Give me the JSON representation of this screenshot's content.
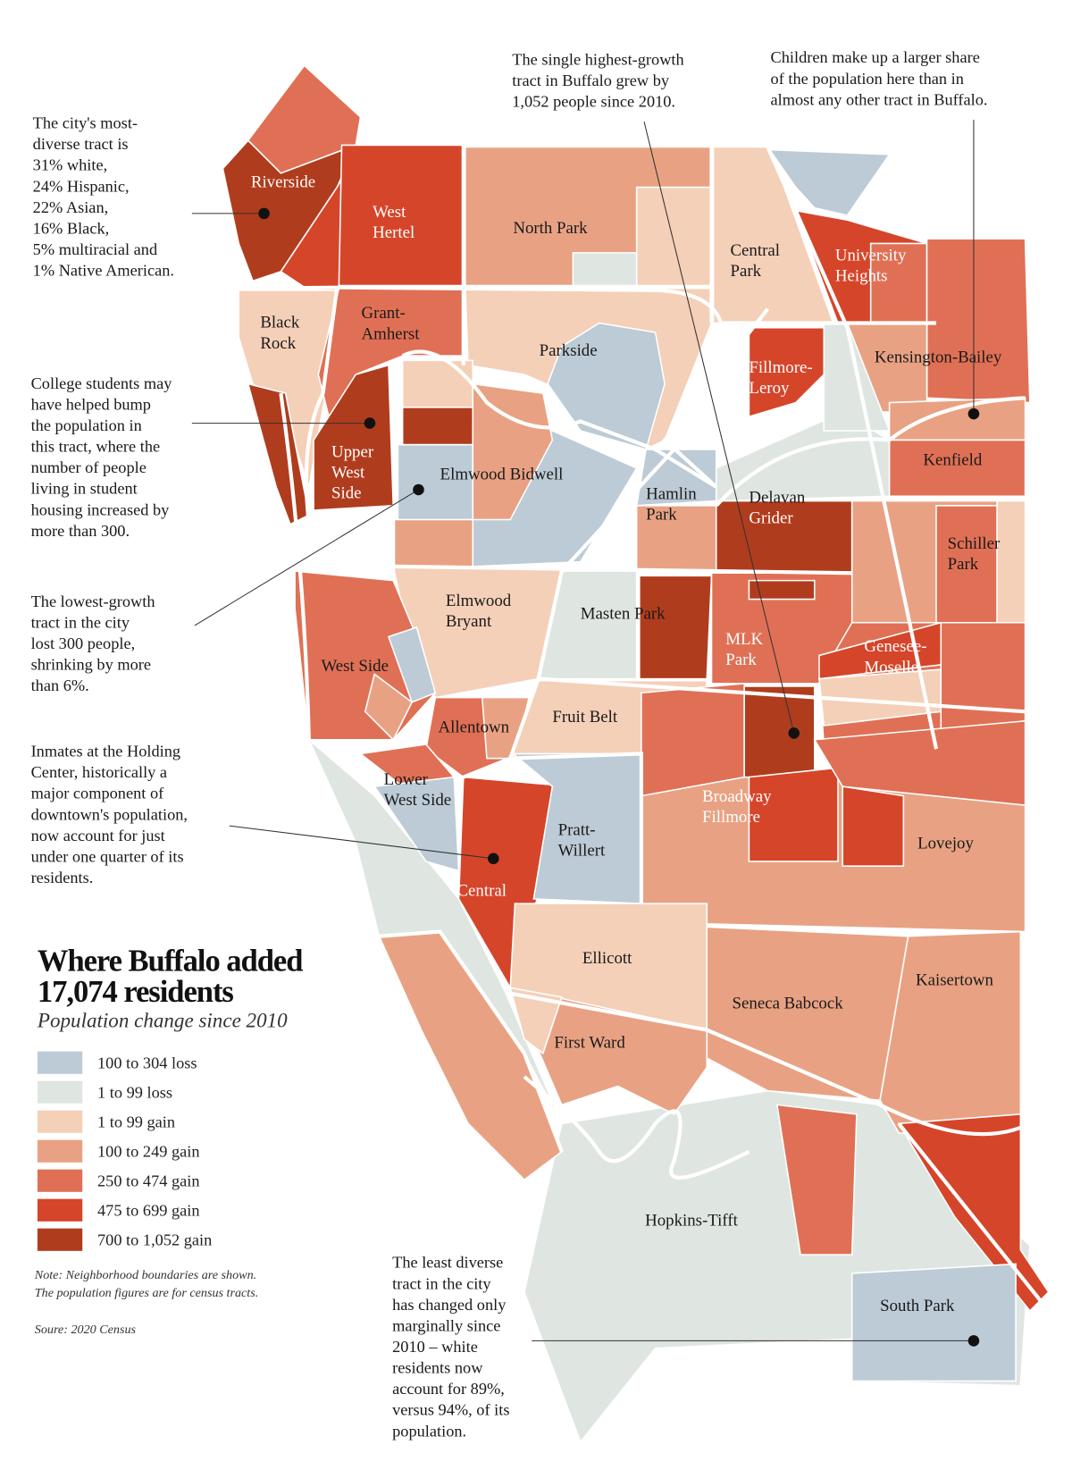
{
  "title_lines": [
    "Where Buffalo added",
    "17,074 residents"
  ],
  "subtitle": "Population change since 2010",
  "legend": [
    {
      "label": "100 to 304 loss",
      "color": "#bccbd6"
    },
    {
      "label": "1 to 99 loss",
      "color": "#dfe6e2"
    },
    {
      "label": "1 to 99 gain",
      "color": "#f4d0b8"
    },
    {
      "label": "100 to 249 gain",
      "color": "#e8a283"
    },
    {
      "label": "250 to 474 gain",
      "color": "#e07055"
    },
    {
      "label": "475 to 699 gain",
      "color": "#d5452a"
    },
    {
      "label": "700 to 1,052 gain",
      "color": "#b03c1e"
    }
  ],
  "notes": [
    "Note: Neighborhood boundaries are shown.",
    "The population figures are for census tracts."
  ],
  "source": "Soure: 2020 Census",
  "annotations": [
    {
      "lines": [
        "The city's most-",
        "diverse tract is",
        "31% white,",
        "24% Hispanic,",
        "22% Asian,",
        "16% Black,",
        "5% multiracial and",
        "1% Native American."
      ]
    },
    {
      "lines": [
        "The single highest-growth",
        "tract in Buffalo grew by",
        "1,052 people since 2010."
      ]
    },
    {
      "lines": [
        "Children make up a larger share",
        "of the population here than in",
        "almost any other tract in Buffalo."
      ]
    },
    {
      "lines": [
        "College students may",
        "have helped bump",
        "the population in",
        "this tract, where the",
        "number of people",
        "living in student",
        "housing increased by",
        "more than 300."
      ]
    },
    {
      "lines": [
        "The lowest-growth",
        "tract in the city",
        "lost 300 people,",
        "shrinking by more",
        "than 6%."
      ]
    },
    {
      "lines": [
        "Inmates at the Holding",
        "Center, historically a",
        "major component of",
        "downtown's population,",
        "now account for just",
        "under one quarter of its",
        "residents."
      ]
    },
    {
      "lines": [
        "The least diverse",
        "tract in the city",
        "has changed only",
        "marginally since",
        "2010 – white",
        "residents now",
        "account for 89%,",
        "versus 94%, of its",
        "population."
      ]
    }
  ],
  "neighborhoods": [
    {
      "lines": [
        "Riverside"
      ]
    },
    {
      "lines": [
        "West",
        "Hertel"
      ]
    },
    {
      "lines": [
        "North Park"
      ]
    },
    {
      "lines": [
        "Central",
        "Park"
      ]
    },
    {
      "lines": [
        "University",
        "Heights"
      ]
    },
    {
      "lines": [
        "Black",
        "Rock"
      ]
    },
    {
      "lines": [
        "Grant-",
        "Amherst"
      ]
    },
    {
      "lines": [
        "Parkside"
      ]
    },
    {
      "lines": [
        "Kensington-Bailey"
      ]
    },
    {
      "lines": [
        "Fillmore-",
        "Leroy"
      ]
    },
    {
      "lines": [
        "Upper",
        "West",
        "Side"
      ]
    },
    {
      "lines": [
        "Elmwood Bidwell"
      ]
    },
    {
      "lines": [
        "Kenfield"
      ]
    },
    {
      "lines": [
        "Hamlin",
        "Park"
      ]
    },
    {
      "lines": [
        "Delavan"
      ]
    },
    {
      "lines": [
        "Grider"
      ]
    },
    {
      "lines": [
        "Schiller",
        "Park"
      ]
    },
    {
      "lines": [
        "Elmwood",
        "Bryant"
      ]
    },
    {
      "lines": [
        "Masten Park"
      ]
    },
    {
      "lines": [
        "MLK",
        "Park"
      ]
    },
    {
      "lines": [
        "Genesee-",
        "Moselle"
      ]
    },
    {
      "lines": [
        "West Side"
      ]
    },
    {
      "lines": [
        "Fruit Belt"
      ]
    },
    {
      "lines": [
        "Allentown"
      ]
    },
    {
      "lines": [
        "Lower",
        "West Side"
      ]
    },
    {
      "lines": [
        "Broadway",
        "Fillmore"
      ]
    },
    {
      "lines": [
        "Pratt-",
        "Willert"
      ]
    },
    {
      "lines": [
        "Lovejoy"
      ]
    },
    {
      "lines": [
        "Central"
      ]
    },
    {
      "lines": [
        "Ellicott"
      ]
    },
    {
      "lines": [
        "Kaisertown"
      ]
    },
    {
      "lines": [
        "Seneca Babcock"
      ]
    },
    {
      "lines": [
        "First Ward"
      ]
    },
    {
      "lines": [
        "Hopkins-Tifft"
      ]
    },
    {
      "lines": [
        "South Park"
      ]
    }
  ]
}
